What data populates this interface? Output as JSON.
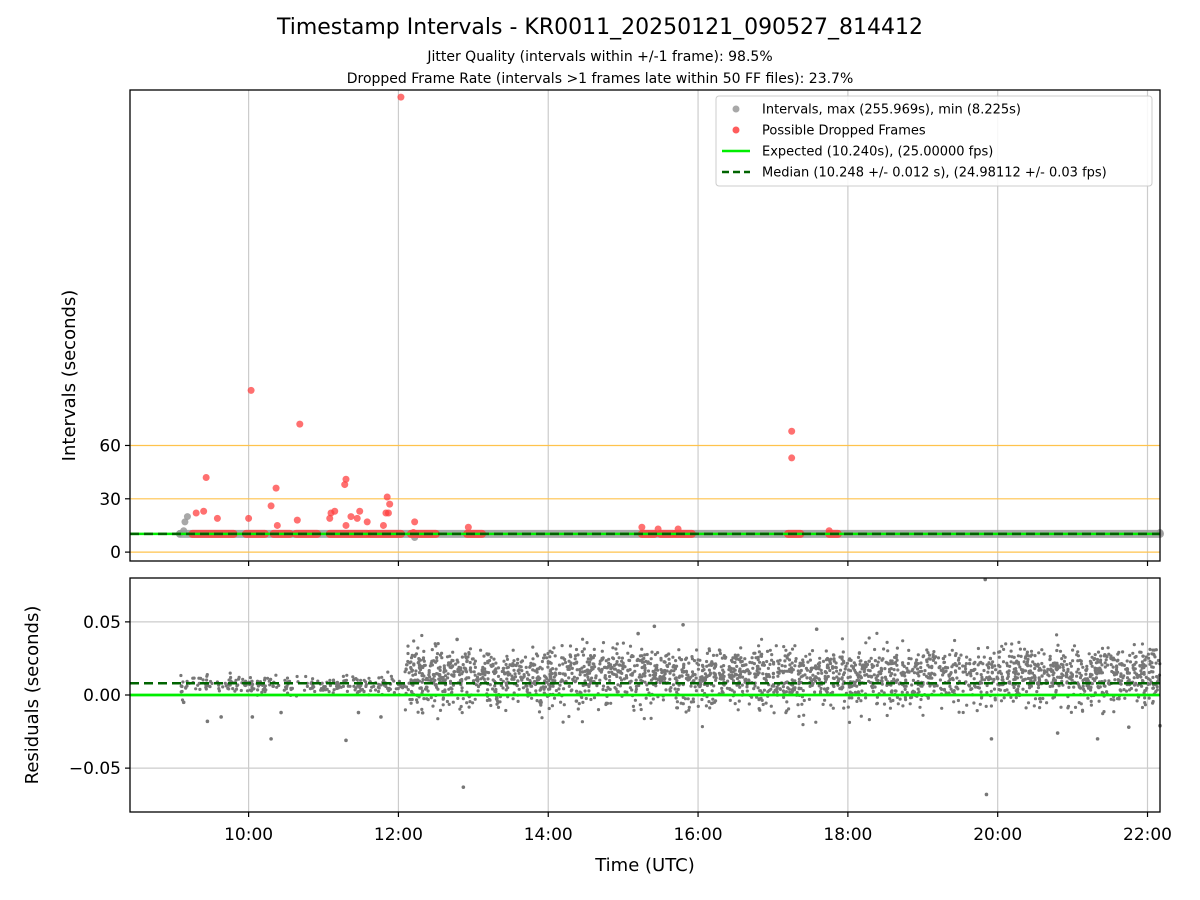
{
  "figure": {
    "title": "Timestamp Intervals - KR0011_20250121_090527_814412",
    "subtitle_jitter": "Jitter Quality (intervals within +/-1 frame): 98.5%",
    "subtitle_dropped": "Dropped Frame Rate (intervals >1 frames late within 50 FF files): 23.7%"
  },
  "chart_data": [
    {
      "type": "scatter",
      "panel": "top",
      "ylabel": "Intervals (seconds)",
      "xlim": [
        "08:25",
        "22:10"
      ],
      "ylim": [
        -5,
        260
      ],
      "yticks": [
        0,
        30,
        60
      ],
      "threshold_lines": [
        0,
        30,
        60
      ],
      "threshold_color": "#ffc34d",
      "grid": "vertical",
      "legend_position": "top-right",
      "legend": [
        {
          "label": "Intervals, max (255.969s), min (8.225s)",
          "kind": "dot",
          "color": "#999999"
        },
        {
          "label": "Possible Dropped Frames",
          "kind": "dot",
          "color": "#ff4040"
        },
        {
          "label": "Expected (10.240s), (25.00000 fps)",
          "kind": "line",
          "color": "#00ee00"
        },
        {
          "label": "Median (10.248 +/- 0.012 s), (24.98112 +/- 0.03 fps)",
          "kind": "dash",
          "color": "#006400"
        }
      ],
      "series": [
        {
          "name": "Intervals, max (255.969s), min (8.225s)",
          "color": "#999999",
          "baseline_range": [
            "09:05",
            "22:10"
          ],
          "baseline_value": 10.24,
          "points": [
            {
              "x": "09:05",
              "y": 10.5
            },
            {
              "x": "09:08",
              "y": 12.0
            },
            {
              "x": "09:09",
              "y": 17.0
            },
            {
              "x": "09:11",
              "y": 20.0
            },
            {
              "x": "12:13",
              "y": 8.225
            },
            {
              "x": "22:10",
              "y": 11.0
            }
          ]
        },
        {
          "name": "Possible Dropped Frames",
          "color": "#ff4040",
          "points": [
            {
              "x": "09:18",
              "y": 22
            },
            {
              "x": "09:24",
              "y": 23
            },
            {
              "x": "09:26",
              "y": 42
            },
            {
              "x": "09:35",
              "y": 19
            },
            {
              "x": "10:00",
              "y": 19
            },
            {
              "x": "10:02",
              "y": 91
            },
            {
              "x": "10:18",
              "y": 26
            },
            {
              "x": "10:22",
              "y": 36
            },
            {
              "x": "10:23",
              "y": 15
            },
            {
              "x": "10:39",
              "y": 18
            },
            {
              "x": "10:41",
              "y": 72
            },
            {
              "x": "11:05",
              "y": 19
            },
            {
              "x": "11:06",
              "y": 22
            },
            {
              "x": "11:09",
              "y": 23
            },
            {
              "x": "11:17",
              "y": 38
            },
            {
              "x": "11:18",
              "y": 41
            },
            {
              "x": "11:18",
              "y": 15
            },
            {
              "x": "11:22",
              "y": 20
            },
            {
              "x": "11:27",
              "y": 19
            },
            {
              "x": "11:29",
              "y": 23
            },
            {
              "x": "11:35",
              "y": 17
            },
            {
              "x": "11:48",
              "y": 15
            },
            {
              "x": "11:50",
              "y": 22
            },
            {
              "x": "11:51",
              "y": 31
            },
            {
              "x": "11:52",
              "y": 22
            },
            {
              "x": "11:53",
              "y": 27
            },
            {
              "x": "12:02",
              "y": 256
            },
            {
              "x": "12:12",
              "y": 11
            },
            {
              "x": "12:13",
              "y": 17
            },
            {
              "x": "12:56",
              "y": 14
            },
            {
              "x": "15:15",
              "y": 14
            },
            {
              "x": "15:28",
              "y": 13
            },
            {
              "x": "15:44",
              "y": 13
            },
            {
              "x": "17:15",
              "y": 68
            },
            {
              "x": "17:15",
              "y": 53
            },
            {
              "x": "17:45",
              "y": 12
            }
          ],
          "clusters": [
            [
              "09:15",
              "09:48"
            ],
            [
              "09:58",
              "10:13"
            ],
            [
              "10:20",
              "10:33"
            ],
            [
              "10:38",
              "10:55"
            ],
            [
              "11:05",
              "11:35"
            ],
            [
              "11:37",
              "12:02"
            ],
            [
              "12:10",
              "12:30"
            ],
            [
              "12:55",
              "13:07"
            ],
            [
              "15:15",
              "15:25"
            ],
            [
              "15:30",
              "15:40"
            ],
            [
              "15:42",
              "15:55"
            ],
            [
              "17:12",
              "17:22"
            ],
            [
              "17:45",
              "17:52"
            ]
          ],
          "cluster_value": 10.24
        }
      ],
      "expected_value": 10.24,
      "median_value": 10.248
    },
    {
      "type": "scatter",
      "panel": "bottom",
      "xlabel": "Time (UTC)",
      "ylabel": "Residuals (seconds)",
      "xlim": [
        "08:25",
        "22:10"
      ],
      "ylim": [
        -0.08,
        0.08
      ],
      "xticks": [
        "10:00",
        "12:00",
        "14:00",
        "16:00",
        "18:00",
        "20:00",
        "22:00"
      ],
      "yticks": [
        0.05,
        0.0,
        -0.05
      ],
      "ytick_labels": [
        "0.05",
        "0.00",
        "−0.05"
      ],
      "grid": "both",
      "point_color": "#777777",
      "expected_residual": 0.0,
      "median_residual": 0.008,
      "residual_regimes": [
        {
          "range": [
            "09:05",
            "12:05"
          ],
          "center": 0.007,
          "spread": 0.004,
          "density": "sparse"
        },
        {
          "range": [
            "12:05",
            "22:10"
          ],
          "center": 0.009,
          "spread": 0.013,
          "density": "dense"
        }
      ],
      "outliers": [
        {
          "x": "09:08",
          "y": -0.005
        },
        {
          "x": "09:27",
          "y": -0.018
        },
        {
          "x": "09:38",
          "y": -0.015
        },
        {
          "x": "10:03",
          "y": -0.015
        },
        {
          "x": "10:18",
          "y": -0.03
        },
        {
          "x": "10:26",
          "y": -0.012
        },
        {
          "x": "11:18",
          "y": -0.031
        },
        {
          "x": "11:28",
          "y": -0.012
        },
        {
          "x": "11:46",
          "y": -0.015
        },
        {
          "x": "12:47",
          "y": 0.038
        },
        {
          "x": "12:52",
          "y": -0.063
        },
        {
          "x": "15:12",
          "y": 0.042
        },
        {
          "x": "15:25",
          "y": 0.047
        },
        {
          "x": "15:48",
          "y": 0.048
        },
        {
          "x": "17:35",
          "y": 0.045
        },
        {
          "x": "19:50",
          "y": 0.079
        },
        {
          "x": "19:51",
          "y": -0.068
        },
        {
          "x": "19:55",
          "y": -0.03
        },
        {
          "x": "20:48",
          "y": -0.026
        },
        {
          "x": "21:20",
          "y": -0.03
        },
        {
          "x": "21:45",
          "y": -0.022
        },
        {
          "x": "22:10",
          "y": -0.021
        }
      ],
      "expected_color": "#00ee00",
      "median_color": "#006400"
    }
  ]
}
